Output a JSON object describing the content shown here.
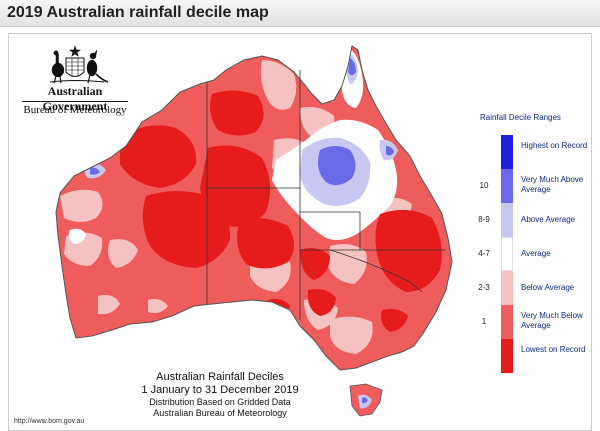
{
  "window": {
    "title": "2019 Australian rainfall decile map"
  },
  "branding": {
    "government": "Australian Government",
    "bureau": "Bureau of Meteorology"
  },
  "legend": {
    "title": "Rainfall Decile Ranges",
    "ranges": [
      {
        "decile": "",
        "label": "Highest on Record",
        "color": "#1f1fe0"
      },
      {
        "decile": "10",
        "label": "Very Much Above Average",
        "color": "#6a6ae8"
      },
      {
        "decile": "8-9",
        "label": "Above Average",
        "color": "#c7c7f2"
      },
      {
        "decile": "4-7",
        "label": "Average",
        "color": "#ffffff"
      },
      {
        "decile": "2-3",
        "label": "Below Average",
        "color": "#f6c1c1"
      },
      {
        "decile": "1",
        "label": "Very Much Below Average",
        "color": "#ef5c5c"
      },
      {
        "decile": "",
        "label": "Lowest on Record",
        "color": "#e61c1c"
      }
    ]
  },
  "caption": {
    "line1": "Australian Rainfall Deciles",
    "line2": "1 January to 31 December 2019",
    "line3": "Distribution Based on Gridded Data",
    "line4": "Australian Bureau of Meteorology"
  },
  "footer": {
    "url": "http://www.bom.gov.au"
  },
  "map": {
    "region": "Australia",
    "variable": "Rainfall deciles",
    "dominant_category": "Very Much Below Average",
    "colors": {
      "very_much_below": "#ef5c5c",
      "lowest_on_record": "#e61c1c",
      "below_average": "#f6c1c1",
      "average": "#ffffff",
      "above_average": "#c7c7f2",
      "very_much_above": "#6a6ae8",
      "highest_on_record": "#1f1fe0",
      "coast": "#555555",
      "state_border": "#333333"
    }
  }
}
